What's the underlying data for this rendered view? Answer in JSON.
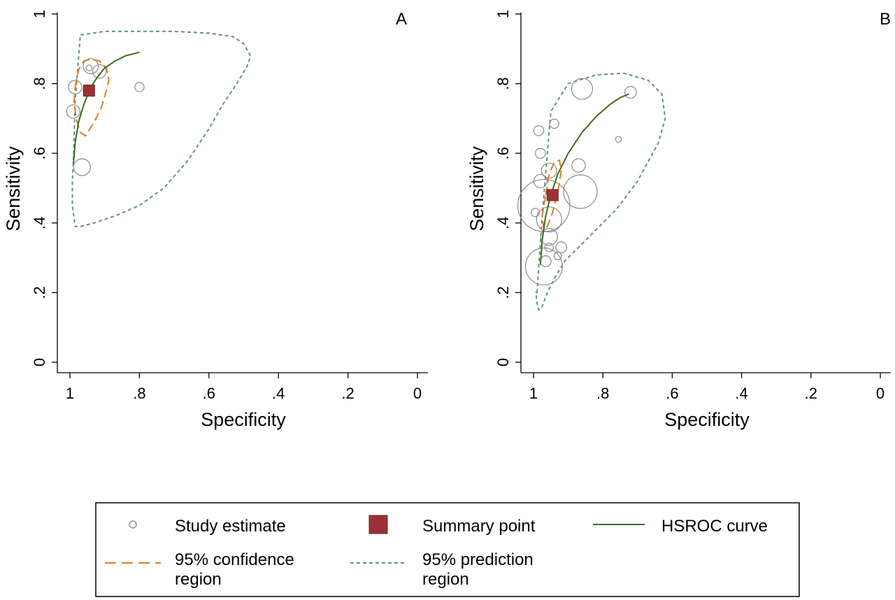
{
  "colors": {
    "study": "#8c8c8c",
    "summary": "#9b3137",
    "summary_edge": "#6e2226",
    "hsroc": "#3f6b1e",
    "confidence": "#e07b26",
    "prediction": "#5f9286",
    "axis": "#000000"
  },
  "chart_data": [
    {
      "type": "scatter",
      "panel_label": "A",
      "xlabel": "Specificity",
      "ylabel": "Sensitivity",
      "xlim": [
        1,
        0
      ],
      "ylim": [
        0,
        1
      ],
      "x_reversed": true,
      "grid": false,
      "x_ticks": [
        1,
        0.8,
        0.6,
        0.4,
        0.2,
        0
      ],
      "x_tick_labels": [
        "1",
        ".8",
        ".6",
        ".4",
        ".2",
        "0"
      ],
      "y_ticks": [
        0,
        0.2,
        0.4,
        0.6,
        0.8,
        1
      ],
      "y_tick_labels": [
        "0",
        ".2",
        ".4",
        ".6",
        ".8",
        "1"
      ],
      "studies": [
        {
          "spec": 0.985,
          "sens": 0.79,
          "weight": 0.8
        },
        {
          "spec": 0.99,
          "sens": 0.72,
          "weight": 0.8
        },
        {
          "spec": 0.965,
          "sens": 0.56,
          "weight": 1.0
        },
        {
          "spec": 0.94,
          "sens": 0.85,
          "weight": 0.9
        },
        {
          "spec": 0.945,
          "sens": 0.845,
          "weight": 0.35
        },
        {
          "spec": 0.915,
          "sens": 0.835,
          "weight": 0.8
        },
        {
          "spec": 0.8,
          "sens": 0.79,
          "weight": 0.55
        },
        {
          "spec": 0.95,
          "sens": 0.78,
          "weight": 0.5
        }
      ],
      "summary_point": {
        "spec": 0.945,
        "sens": 0.78
      },
      "hsroc_curve": {
        "spec": [
          0.99,
          0.985,
          0.975,
          0.96,
          0.94,
          0.92,
          0.9,
          0.87,
          0.84,
          0.8
        ],
        "sens": [
          0.57,
          0.63,
          0.69,
          0.74,
          0.79,
          0.82,
          0.845,
          0.865,
          0.88,
          0.89
        ]
      },
      "confidence_region": {
        "spec": [
          0.985,
          0.975,
          0.96,
          0.94,
          0.915,
          0.895,
          0.888,
          0.895,
          0.91,
          0.93,
          0.955,
          0.97,
          0.982,
          0.988,
          0.985
        ],
        "sens": [
          0.79,
          0.84,
          0.865,
          0.87,
          0.865,
          0.845,
          0.81,
          0.78,
          0.73,
          0.69,
          0.65,
          0.66,
          0.7,
          0.75,
          0.79
        ]
      },
      "prediction_region": {
        "spec": [
          0.99,
          0.985,
          0.97,
          0.9,
          0.8,
          0.7,
          0.6,
          0.53,
          0.5,
          0.48,
          0.49,
          0.52,
          0.56,
          0.6,
          0.66,
          0.73,
          0.8,
          0.87,
          0.93,
          0.97,
          0.985,
          0.993,
          0.993,
          0.99
        ],
        "sens": [
          0.58,
          0.75,
          0.94,
          0.95,
          0.95,
          0.95,
          0.945,
          0.935,
          0.915,
          0.88,
          0.85,
          0.8,
          0.74,
          0.67,
          0.58,
          0.5,
          0.45,
          0.42,
          0.4,
          0.39,
          0.39,
          0.45,
          0.52,
          0.58
        ]
      }
    },
    {
      "type": "scatter",
      "panel_label": "B",
      "xlabel": "Specificity",
      "ylabel": "Sensitivity",
      "xlim": [
        1,
        0
      ],
      "ylim": [
        0,
        1
      ],
      "x_reversed": true,
      "grid": false,
      "x_ticks": [
        1,
        0.8,
        0.6,
        0.4,
        0.2,
        0
      ],
      "x_tick_labels": [
        "1",
        ".8",
        ".6",
        ".4",
        ".2",
        "0"
      ],
      "y_ticks": [
        0,
        0.2,
        0.4,
        0.6,
        0.8,
        1
      ],
      "y_tick_labels": [
        "0",
        ".2",
        ".4",
        ".6",
        ".8",
        "1"
      ],
      "studies": [
        {
          "spec": 0.86,
          "sens": 0.785,
          "weight": 1.25
        },
        {
          "spec": 0.72,
          "sens": 0.775,
          "weight": 0.7
        },
        {
          "spec": 0.985,
          "sens": 0.665,
          "weight": 0.6
        },
        {
          "spec": 0.94,
          "sens": 0.685,
          "weight": 0.55
        },
        {
          "spec": 0.755,
          "sens": 0.64,
          "weight": 0.35
        },
        {
          "spec": 0.98,
          "sens": 0.6,
          "weight": 0.6
        },
        {
          "spec": 0.87,
          "sens": 0.565,
          "weight": 0.8
        },
        {
          "spec": 0.955,
          "sens": 0.55,
          "weight": 0.9
        },
        {
          "spec": 0.98,
          "sens": 0.52,
          "weight": 0.8
        },
        {
          "spec": 0.865,
          "sens": 0.49,
          "weight": 2.0
        },
        {
          "spec": 0.97,
          "sens": 0.45,
          "weight": 3.1
        },
        {
          "spec": 0.995,
          "sens": 0.43,
          "weight": 0.5
        },
        {
          "spec": 0.955,
          "sens": 0.41,
          "weight": 1.5
        },
        {
          "spec": 0.955,
          "sens": 0.36,
          "weight": 1.0
        },
        {
          "spec": 0.92,
          "sens": 0.33,
          "weight": 0.65
        },
        {
          "spec": 0.93,
          "sens": 0.305,
          "weight": 0.45
        },
        {
          "spec": 0.965,
          "sens": 0.29,
          "weight": 0.65
        },
        {
          "spec": 0.97,
          "sens": 0.275,
          "weight": 2.2
        },
        {
          "spec": 0.955,
          "sens": 0.33,
          "weight": 0.5
        }
      ],
      "summary_point": {
        "spec": 0.945,
        "sens": 0.48
      },
      "hsroc_curve": {
        "spec": [
          0.98,
          0.975,
          0.965,
          0.95,
          0.93,
          0.9,
          0.86,
          0.82,
          0.78,
          0.75,
          0.725
        ],
        "sens": [
          0.28,
          0.35,
          0.42,
          0.48,
          0.54,
          0.6,
          0.66,
          0.705,
          0.74,
          0.76,
          0.77
        ]
      },
      "confidence_region": {
        "spec": [
          0.965,
          0.955,
          0.94,
          0.925,
          0.92,
          0.93,
          0.945,
          0.96,
          0.97,
          0.975,
          0.97,
          0.965
        ],
        "sens": [
          0.48,
          0.54,
          0.575,
          0.58,
          0.55,
          0.49,
          0.43,
          0.39,
          0.38,
          0.42,
          0.45,
          0.48
        ]
      },
      "prediction_region": {
        "spec": [
          0.99,
          0.975,
          0.95,
          0.9,
          0.82,
          0.74,
          0.67,
          0.63,
          0.62,
          0.64,
          0.7,
          0.76,
          0.82,
          0.87,
          0.91,
          0.94,
          0.96,
          0.975,
          0.985,
          0.99,
          0.993,
          0.99
        ],
        "sens": [
          0.2,
          0.42,
          0.72,
          0.8,
          0.825,
          0.83,
          0.81,
          0.77,
          0.7,
          0.63,
          0.52,
          0.44,
          0.38,
          0.33,
          0.29,
          0.24,
          0.2,
          0.16,
          0.15,
          0.17,
          0.2,
          0.2
        ]
      }
    }
  ],
  "legend": {
    "items": [
      {
        "key": "study",
        "label_lines": [
          "Study estimate"
        ]
      },
      {
        "key": "summary",
        "label_lines": [
          "Summary point"
        ]
      },
      {
        "key": "hsroc",
        "label_lines": [
          "HSROC curve"
        ]
      },
      {
        "key": "confidence",
        "label_lines": [
          "95% confidence",
          "region"
        ]
      },
      {
        "key": "prediction",
        "label_lines": [
          "95% prediction",
          "region"
        ]
      }
    ]
  }
}
